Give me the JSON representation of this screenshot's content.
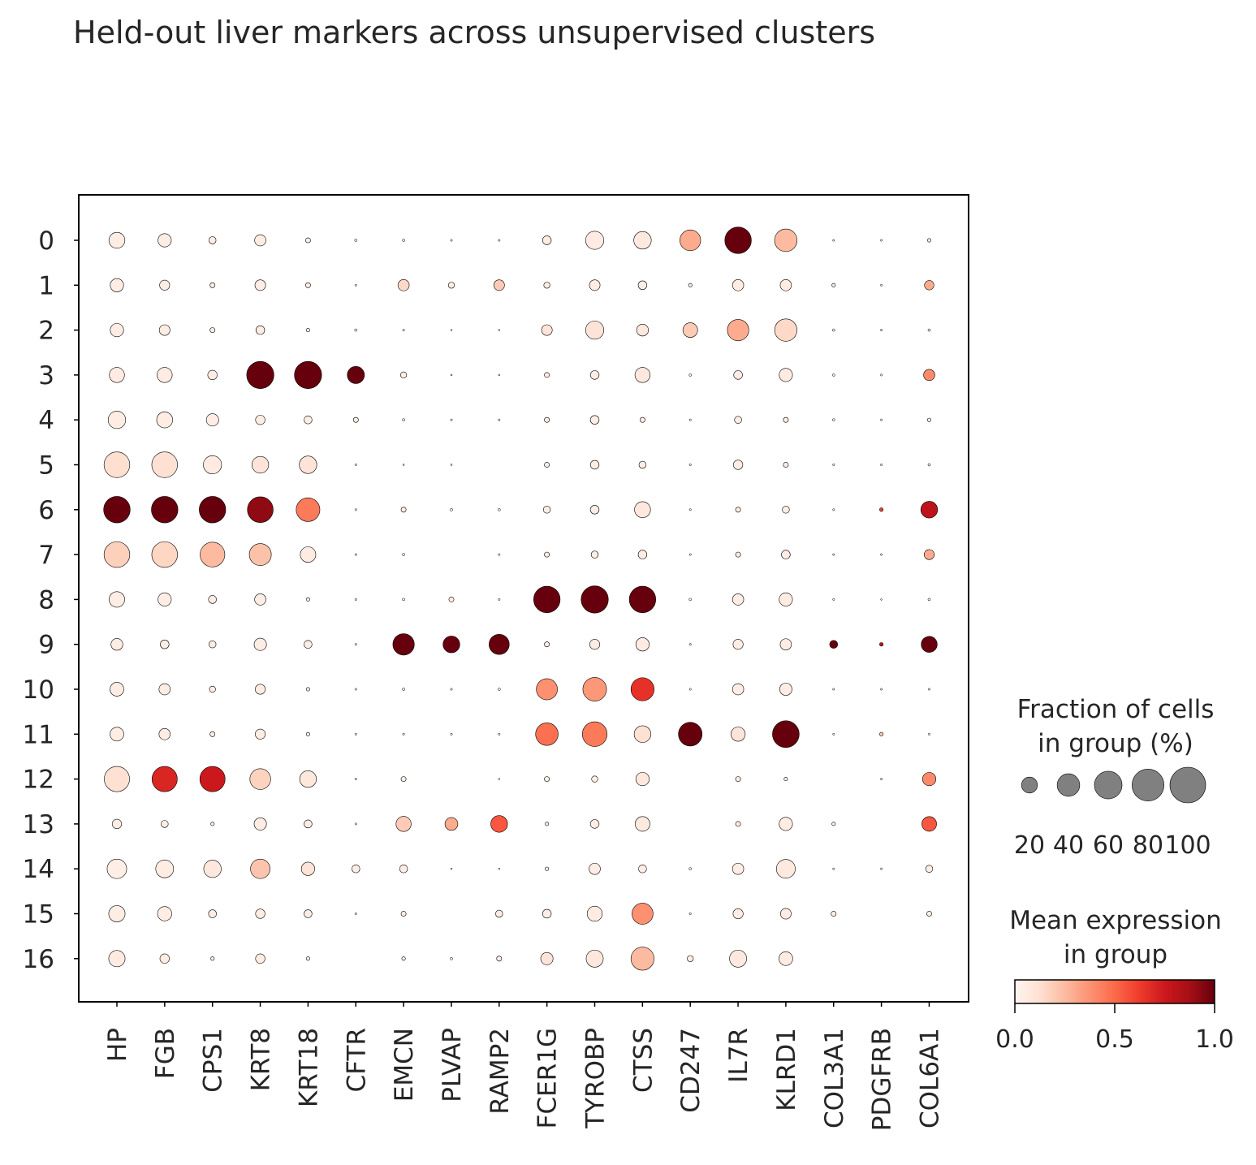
{
  "chart_data": {
    "type": "dotplot",
    "title": "Held-out liver markers across unsupervised clusters",
    "xlabel": "",
    "ylabel": "",
    "genes": [
      "HP",
      "FGB",
      "CPS1",
      "KRT8",
      "KRT18",
      "CFTR",
      "EMCN",
      "PLVAP",
      "RAMP2",
      "FCER1G",
      "TYROBP",
      "CTSS",
      "CD247",
      "IL7R",
      "KLRD1",
      "COL3A1",
      "PDGFRB",
      "COL6A1"
    ],
    "clusters": [
      "0",
      "1",
      "2",
      "3",
      "4",
      "5",
      "6",
      "7",
      "8",
      "9",
      "10",
      "11",
      "12",
      "13",
      "14",
      "15",
      "16"
    ],
    "fraction_pct": [
      [
        20,
        14,
        4,
        10,
        2,
        0.5,
        0.5,
        0.3,
        0.3,
        6,
        26,
        24,
        34,
        55,
        40,
        0.3,
        0.3,
        1
      ],
      [
        14,
        8,
        2,
        9,
        2,
        0.3,
        10,
        3,
        9,
        3,
        9,
        6,
        1,
        10,
        10,
        1,
        0.3,
        7
      ],
      [
        14,
        9,
        2,
        6,
        1,
        0.5,
        0.3,
        0.2,
        0.2,
        9,
        26,
        11,
        17,
        36,
        39,
        0.5,
        0.3,
        0.5
      ],
      [
        18,
        18,
        7,
        58,
        58,
        23,
        3,
        0.2,
        0.2,
        2,
        6,
        18,
        0.5,
        6,
        14,
        0.5,
        0.3,
        10
      ],
      [
        24,
        20,
        12,
        7,
        5,
        2,
        0.5,
        0.3,
        0.3,
        2,
        6,
        2,
        0.3,
        4,
        2,
        0.5,
        0.3,
        1
      ],
      [
        52,
        52,
        26,
        22,
        24,
        0.3,
        0.2,
        0.2,
        0,
        2,
        6,
        4,
        0.3,
        7,
        2,
        0.3,
        0.3,
        0.5
      ],
      [
        55,
        55,
        55,
        52,
        44,
        0.3,
        2,
        0.5,
        0.5,
        4,
        6,
        20,
        0.3,
        2,
        4,
        0.3,
        1,
        22
      ],
      [
        52,
        52,
        48,
        38,
        19,
        0.3,
        0.5,
        0,
        0.3,
        2,
        4,
        6,
        0.3,
        2,
        6,
        0.3,
        0.3,
        8
      ],
      [
        19,
        14,
        5,
        10,
        1,
        0.3,
        0.5,
        2,
        0.3,
        55,
        58,
        55,
        0.5,
        10,
        14,
        0.3,
        0.2,
        0.5
      ],
      [
        11,
        6,
        4,
        12,
        5,
        0.3,
        36,
        22,
        32,
        2,
        8,
        14,
        0.3,
        8,
        10,
        5,
        1,
        20
      ],
      [
        15,
        10,
        3,
        8,
        1,
        0.3,
        0.5,
        0.3,
        0.5,
        35,
        44,
        42,
        0.3,
        10,
        12,
        0.3,
        0.3,
        0.3
      ],
      [
        15,
        10,
        2,
        8,
        1,
        0.3,
        0.3,
        0.3,
        0.3,
        40,
        48,
        22,
        44,
        16,
        56,
        0.3,
        1,
        0.3
      ],
      [
        50,
        50,
        50,
        34,
        22,
        0.3,
        2,
        0,
        0.2,
        2,
        3,
        14,
        0,
        2,
        1,
        0,
        0.3,
        14
      ],
      [
        7,
        4,
        1,
        12,
        5,
        0.3,
        18,
        13,
        22,
        1,
        6,
        17,
        0,
        2,
        14,
        1,
        0,
        17
      ],
      [
        30,
        25,
        24,
        30,
        14,
        5,
        5,
        0.2,
        0.2,
        1,
        10,
        5,
        0.5,
        10,
        28,
        0.3,
        0.3,
        4
      ],
      [
        21,
        16,
        5,
        7,
        5,
        0.3,
        2,
        0,
        4,
        6,
        18,
        35,
        0.3,
        8,
        9,
        2,
        0,
        2
      ],
      [
        21,
        7,
        1,
        7,
        1,
        0,
        1,
        0.5,
        2,
        12,
        23,
        42,
        3,
        23,
        15,
        0,
        0,
        0
      ]
    ],
    "mean_expression": [
      [
        0.05,
        0.05,
        0.05,
        0.05,
        0.05,
        0.05,
        0.05,
        0.05,
        0.05,
        0.05,
        0.06,
        0.07,
        0.3,
        1.0,
        0.25,
        0.05,
        0.05,
        0.05
      ],
      [
        0.05,
        0.05,
        0.05,
        0.05,
        0.05,
        0.05,
        0.15,
        0.05,
        0.2,
        0.05,
        0.05,
        0.05,
        0.05,
        0.05,
        0.05,
        0.05,
        0.05,
        0.3
      ],
      [
        0.05,
        0.05,
        0.05,
        0.05,
        0.05,
        0.05,
        0.05,
        0.05,
        0.05,
        0.1,
        0.1,
        0.08,
        0.2,
        0.3,
        0.15,
        0.05,
        0.05,
        0.05
      ],
      [
        0.06,
        0.06,
        0.05,
        1.0,
        1.0,
        1.0,
        0.05,
        0.05,
        0.05,
        0.05,
        0.05,
        0.08,
        0.05,
        0.05,
        0.06,
        0.05,
        0.05,
        0.4
      ],
      [
        0.05,
        0.05,
        0.05,
        0.05,
        0.05,
        0.05,
        0.05,
        0.05,
        0.05,
        0.05,
        0.05,
        0.05,
        0.05,
        0.05,
        0.05,
        0.05,
        0.05,
        0.05
      ],
      [
        0.13,
        0.12,
        0.06,
        0.1,
        0.1,
        0.05,
        0.05,
        0.05,
        0.05,
        0.05,
        0.05,
        0.05,
        0.05,
        0.05,
        0.05,
        0.05,
        0.05,
        0.05
      ],
      [
        1.0,
        1.0,
        1.0,
        0.92,
        0.45,
        0.05,
        0.05,
        0.05,
        0.05,
        0.05,
        0.05,
        0.08,
        0.05,
        0.05,
        0.05,
        0.05,
        0.6,
        0.8
      ],
      [
        0.18,
        0.16,
        0.25,
        0.23,
        0.06,
        0.05,
        0.05,
        0.05,
        0.05,
        0.05,
        0.05,
        0.05,
        0.05,
        0.05,
        0.05,
        0.05,
        0.05,
        0.3
      ],
      [
        0.05,
        0.05,
        0.05,
        0.05,
        0.05,
        0.05,
        0.05,
        0.05,
        0.05,
        1.0,
        1.0,
        1.0,
        0.05,
        0.05,
        0.06,
        0.05,
        0.05,
        0.05
      ],
      [
        0.05,
        0.05,
        0.05,
        0.05,
        0.05,
        0.05,
        1.0,
        1.0,
        1.0,
        0.05,
        0.05,
        0.06,
        0.05,
        0.05,
        0.05,
        1.0,
        0.8,
        1.0
      ],
      [
        0.05,
        0.05,
        0.05,
        0.05,
        0.05,
        0.05,
        0.05,
        0.05,
        0.05,
        0.38,
        0.36,
        0.66,
        0.05,
        0.05,
        0.05,
        0.05,
        0.05,
        0.05
      ],
      [
        0.05,
        0.05,
        0.05,
        0.05,
        0.05,
        0.05,
        0.05,
        0.05,
        0.05,
        0.48,
        0.45,
        0.12,
        1.0,
        0.1,
        1.0,
        0.05,
        0.2,
        0.05
      ],
      [
        0.12,
        0.7,
        0.75,
        0.17,
        0.08,
        0.05,
        0.05,
        0.05,
        0.05,
        0.05,
        0.05,
        0.08,
        0.05,
        0.05,
        0.05,
        0.05,
        0.05,
        0.4
      ],
      [
        0.05,
        0.05,
        0.05,
        0.05,
        0.05,
        0.05,
        0.2,
        0.3,
        0.55,
        0.05,
        0.05,
        0.07,
        0.05,
        0.05,
        0.05,
        0.05,
        0.05,
        0.55
      ],
      [
        0.04,
        0.05,
        0.08,
        0.22,
        0.1,
        0.05,
        0.05,
        0.05,
        0.05,
        0.05,
        0.05,
        0.05,
        0.05,
        0.05,
        0.07,
        0.05,
        0.05,
        0.05
      ],
      [
        0.05,
        0.05,
        0.05,
        0.05,
        0.05,
        0.05,
        0.05,
        0.05,
        0.05,
        0.05,
        0.06,
        0.38,
        0.05,
        0.05,
        0.05,
        0.05,
        0.05,
        0.05
      ],
      [
        0.06,
        0.05,
        0.05,
        0.05,
        0.05,
        0.05,
        0.05,
        0.05,
        0.05,
        0.1,
        0.08,
        0.25,
        0.05,
        0.07,
        0.06,
        0.05,
        0.05,
        0.05
      ]
    ],
    "size_legend": {
      "title_line1": "Fraction of cells",
      "title_line2": "in group (%)",
      "values": [
        "20",
        "40",
        "60",
        "80",
        "100"
      ]
    },
    "color_legend": {
      "title_line1": "Mean expression",
      "title_line2": "in group",
      "colormap": "Reds",
      "ticks": [
        "0.0",
        "0.5",
        "1.0"
      ],
      "range": [
        0,
        1
      ]
    },
    "colormap_stops": [
      "#fff5f0",
      "#fee0d2",
      "#fcbba1",
      "#fc9272",
      "#fb6a4a",
      "#ef3b2c",
      "#cb181d",
      "#a50f15",
      "#67000d"
    ]
  }
}
